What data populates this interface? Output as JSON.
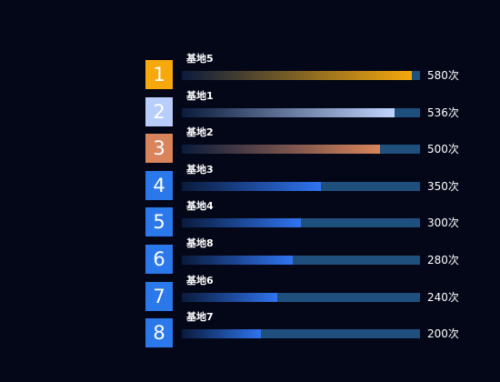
{
  "chart_data": {
    "type": "bar",
    "orientation": "horizontal",
    "xlim": [
      0,
      600
    ],
    "categories": [
      "基地5",
      "基地1",
      "基地2",
      "基地3",
      "基地4",
      "基地8",
      "基地6",
      "基地7"
    ],
    "ranks": [
      "1",
      "2",
      "3",
      "4",
      "5",
      "6",
      "7",
      "8"
    ],
    "values": [
      580,
      536,
      500,
      350,
      300,
      280,
      240,
      200
    ],
    "value_labels": [
      "580次",
      "536次",
      "500次",
      "350次",
      "300次",
      "280次",
      "240次",
      "200次"
    ],
    "colors": {
      "background": "#040717",
      "track": "#1f4f7c",
      "rank_badges": [
        "#f6a80c",
        "#b8cdf9",
        "#d9845a",
        "#2b78ea",
        "#2b78ea",
        "#2b78ea",
        "#2b78ea",
        "#2b78ea"
      ],
      "bar_end": [
        "#f5a80b",
        "#c0d4fd",
        "#d9845a",
        "#2f74f0",
        "#2f74f0",
        "#2f74f0",
        "#2f74f0",
        "#2f74f0"
      ],
      "bar_start": "#0a1b3c"
    }
  }
}
